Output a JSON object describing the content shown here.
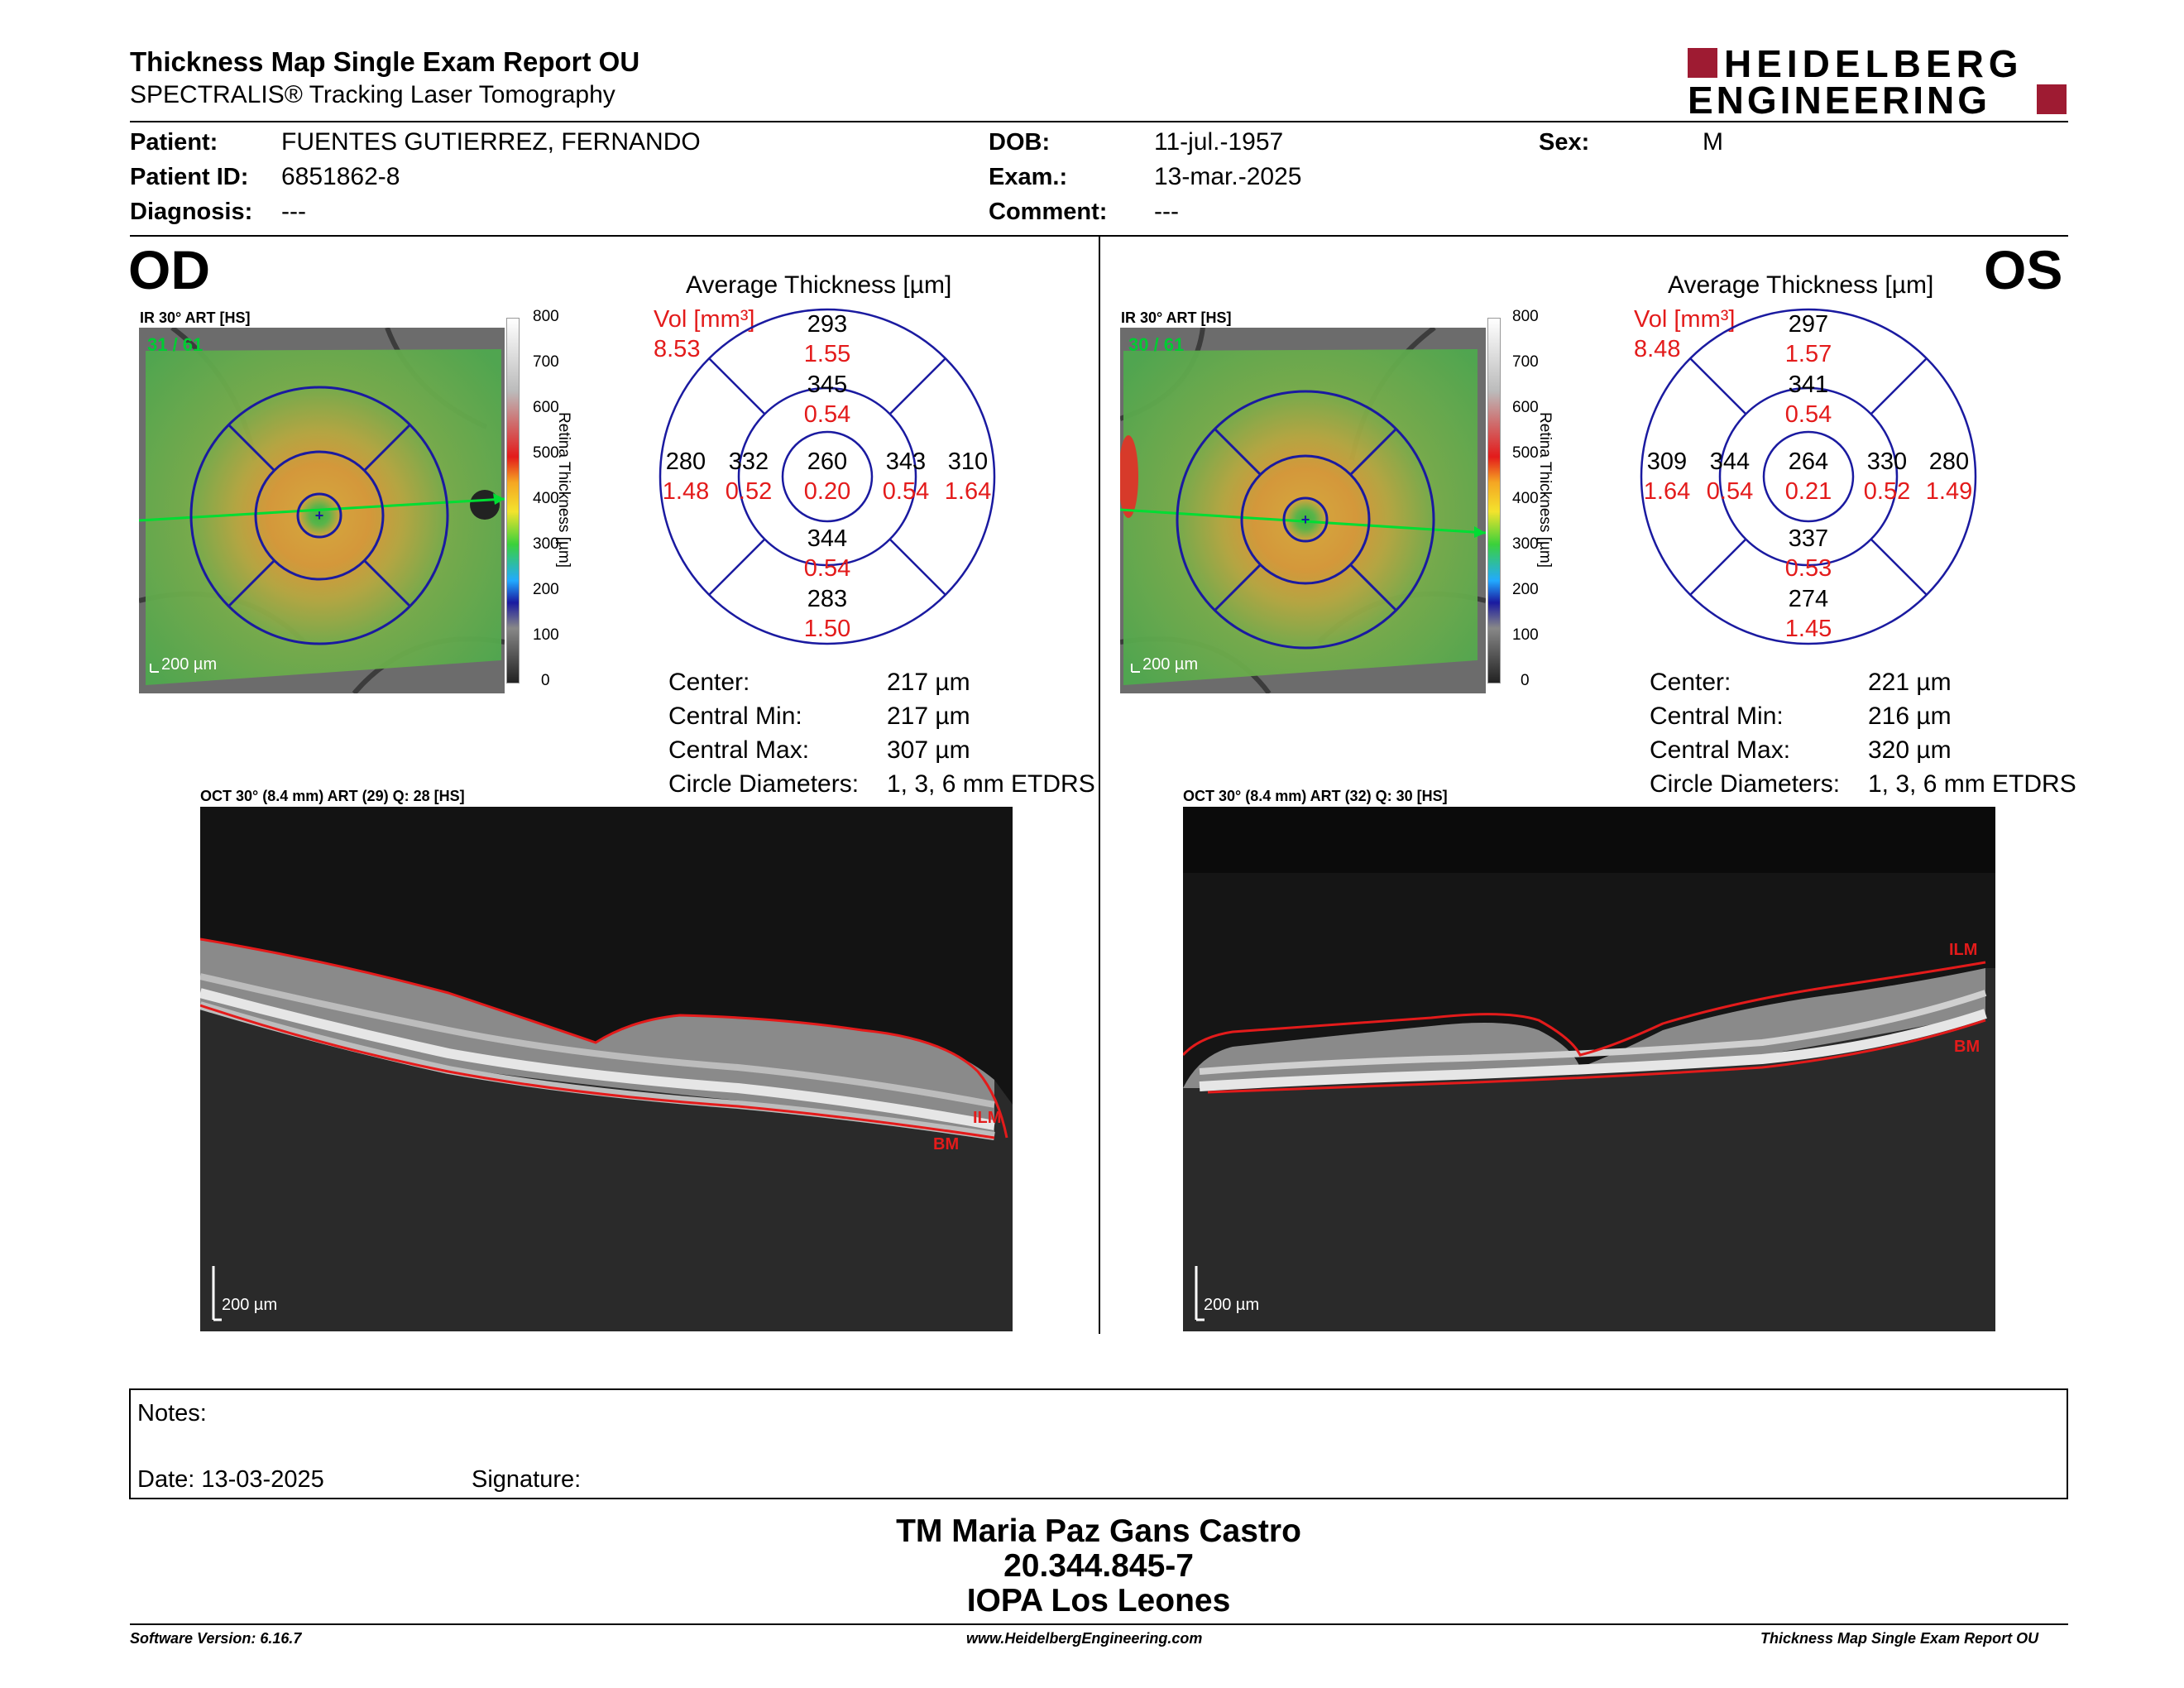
{
  "header": {
    "title": "Thickness Map Single Exam Report OU",
    "subtitle": "SPECTRALIS® Tracking Laser Tomography",
    "logo_line1": "HEIDELBERG",
    "logo_line2": "ENGINEERING"
  },
  "patient": {
    "name_label": "Patient:",
    "name": "FUENTES GUTIERREZ, FERNANDO",
    "id_label": "Patient ID:",
    "id": "6851862-8",
    "diag_label": "Diagnosis:",
    "diag": "---",
    "dob_label": "DOB:",
    "dob": "11-jul.-1957",
    "exam_label": "Exam.:",
    "exam": "13-mar.-2025",
    "comment_label": "Comment:",
    "comment": "---",
    "sex_label": "Sex:",
    "sex": "M"
  },
  "colors": {
    "red": "#e31b1b",
    "blue": "#1a1aa0",
    "logo": "#9e1b32",
    "green": "#00cc33"
  },
  "colorbar": {
    "ticks": [
      "800",
      "700",
      "600",
      "500",
      "400",
      "300",
      "200",
      "100",
      "0"
    ],
    "axis_label": "Retina Thickness [µm]"
  },
  "od": {
    "eye": "OD",
    "ir_label": "IR 30° ART [HS]",
    "frames": "31 / 61",
    "scale": "200 µm",
    "avg_title": "Average Thickness [µm]",
    "vol_label": "Vol [mm³]",
    "vol_total": "8.53",
    "sectors": {
      "center": {
        "t": "260",
        "v": "0.20"
      },
      "inner_sup": {
        "t": "345",
        "v": "0.54"
      },
      "inner_inf": {
        "t": "344",
        "v": "0.54"
      },
      "inner_left": {
        "t": "332",
        "v": "0.52"
      },
      "inner_right": {
        "t": "343",
        "v": "0.54"
      },
      "outer_sup": {
        "t": "293",
        "v": "1.55"
      },
      "outer_inf": {
        "t": "283",
        "v": "1.50"
      },
      "outer_left": {
        "t": "280",
        "v": "1.48"
      },
      "outer_right": {
        "t": "310",
        "v": "1.64"
      }
    },
    "stats": [
      {
        "label": "Center:",
        "value": "217 µm"
      },
      {
        "label": "Central Min:",
        "value": "217 µm"
      },
      {
        "label": "Central Max:",
        "value": "307 µm"
      },
      {
        "label": "Circle Diameters:",
        "value": "1, 3, 6 mm ETDRS"
      }
    ],
    "oct_label": "OCT 30° (8.4 mm) ART (29) Q: 28 [HS]",
    "oct_scale": "200 µm",
    "ilm": "ILM",
    "bm": "BM"
  },
  "os": {
    "eye": "OS",
    "ir_label": "IR 30° ART [HS]",
    "frames": "30 / 61",
    "scale": "200 µm",
    "avg_title": "Average Thickness [µm]",
    "vol_label": "Vol [mm³]",
    "vol_total": "8.48",
    "sectors": {
      "center": {
        "t": "264",
        "v": "0.21"
      },
      "inner_sup": {
        "t": "341",
        "v": "0.54"
      },
      "inner_inf": {
        "t": "337",
        "v": "0.53"
      },
      "inner_left": {
        "t": "344",
        "v": "0.54"
      },
      "inner_right": {
        "t": "330",
        "v": "0.52"
      },
      "outer_sup": {
        "t": "297",
        "v": "1.57"
      },
      "outer_inf": {
        "t": "274",
        "v": "1.45"
      },
      "outer_left": {
        "t": "309",
        "v": "1.64"
      },
      "outer_right": {
        "t": "280",
        "v": "1.49"
      }
    },
    "stats": [
      {
        "label": "Center:",
        "value": "221 µm"
      },
      {
        "label": "Central Min:",
        "value": "216 µm"
      },
      {
        "label": "Central Max:",
        "value": "320 µm"
      },
      {
        "label": "Circle Diameters:",
        "value": "1, 3, 6 mm ETDRS"
      }
    ],
    "oct_label": "OCT 30° (8.4 mm) ART (32) Q: 30 [HS]",
    "oct_scale": "200 µm",
    "ilm": "ILM",
    "bm": "BM"
  },
  "notes": {
    "notes_label": "Notes:",
    "date_label": "Date: 13-03-2025",
    "signature_label": "Signature:"
  },
  "signer": {
    "name": "TM Maria Paz Gans Castro",
    "rut": "20.344.845-7",
    "org": "IOPA Los Leones"
  },
  "footer": {
    "left": "Software Version: 6.16.7",
    "center": "www.HeidelbergEngineering.com",
    "right": "Thickness Map Single Exam Report OU"
  }
}
